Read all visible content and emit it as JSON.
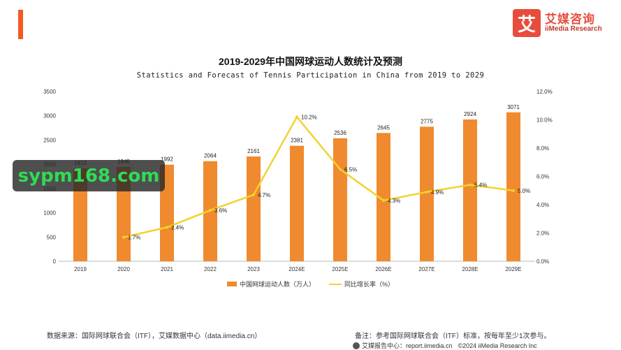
{
  "branding": {
    "accent_color": "#f15a24",
    "logo_mark": "艾",
    "logo_cn": "艾媒咨询",
    "logo_en": "iiMedia Research",
    "logo_color": "#e74c3c"
  },
  "chart_data": {
    "type": "bar+line",
    "title": "2019-2029年中国网球运动人数统计及预测",
    "subtitle": "Statistics and Forecast of Tennis Participation in China from 2019 to 2029",
    "categories": [
      "2019",
      "2020",
      "2021",
      "2022",
      "2023",
      "2024E",
      "2025E",
      "2026E",
      "2027E",
      "2028E",
      "2029E"
    ],
    "series": [
      {
        "name": "中国网球运动人数（万人）",
        "type": "bar",
        "axis": "left",
        "color": "#f08a2e",
        "values": [
          1913,
          1945,
          1992,
          2064,
          2161,
          2381,
          2536,
          2645,
          2775,
          2924,
          3071
        ],
        "labels": [
          "1913",
          "1945",
          "1992",
          "2064",
          "2161",
          "2381",
          "2536",
          "2645",
          "2775",
          "2924",
          "3071"
        ]
      },
      {
        "name": "同比增长率（%）",
        "type": "line",
        "axis": "right",
        "color": "#f2d230",
        "values": [
          null,
          1.7,
          2.4,
          3.6,
          4.7,
          10.2,
          6.5,
          4.3,
          4.9,
          5.4,
          5.0
        ],
        "labels": [
          "",
          "1.7%",
          "2.4%",
          "3.6%",
          "4.7%",
          "10.2%",
          "6.5%",
          "4.3%",
          "4.9%",
          "5.4%",
          "5.0%"
        ]
      }
    ],
    "yleft_range": [
      0,
      3500
    ],
    "yleft_ticks": [
      "0",
      "500",
      "1000",
      "1500",
      "2000",
      "2500",
      "3000",
      "3500"
    ],
    "yright_range": [
      0,
      12
    ],
    "yright_ticks": [
      "0.0%",
      "2.0%",
      "4.0%",
      "6.0%",
      "8.0%",
      "10.0%",
      "12.0%"
    ],
    "grid": false,
    "legend_position": "bottom-center"
  },
  "legend": {
    "bar_label": "中国网球运动人数（万人）",
    "line_label": "同比增长率（%）"
  },
  "footer": {
    "source": "数据来源：国际网球联合会（ITF），艾媒数据中心（data.iimedia.cn）",
    "note": "备注：参考国际网球联合会（ITF）标准，按每年至少1次参与。",
    "report_site": "艾媒报告中心：report.iimedia.cn",
    "copyright": "©2024  iiMedia Research  Inc"
  },
  "watermark": "sypm168.com"
}
